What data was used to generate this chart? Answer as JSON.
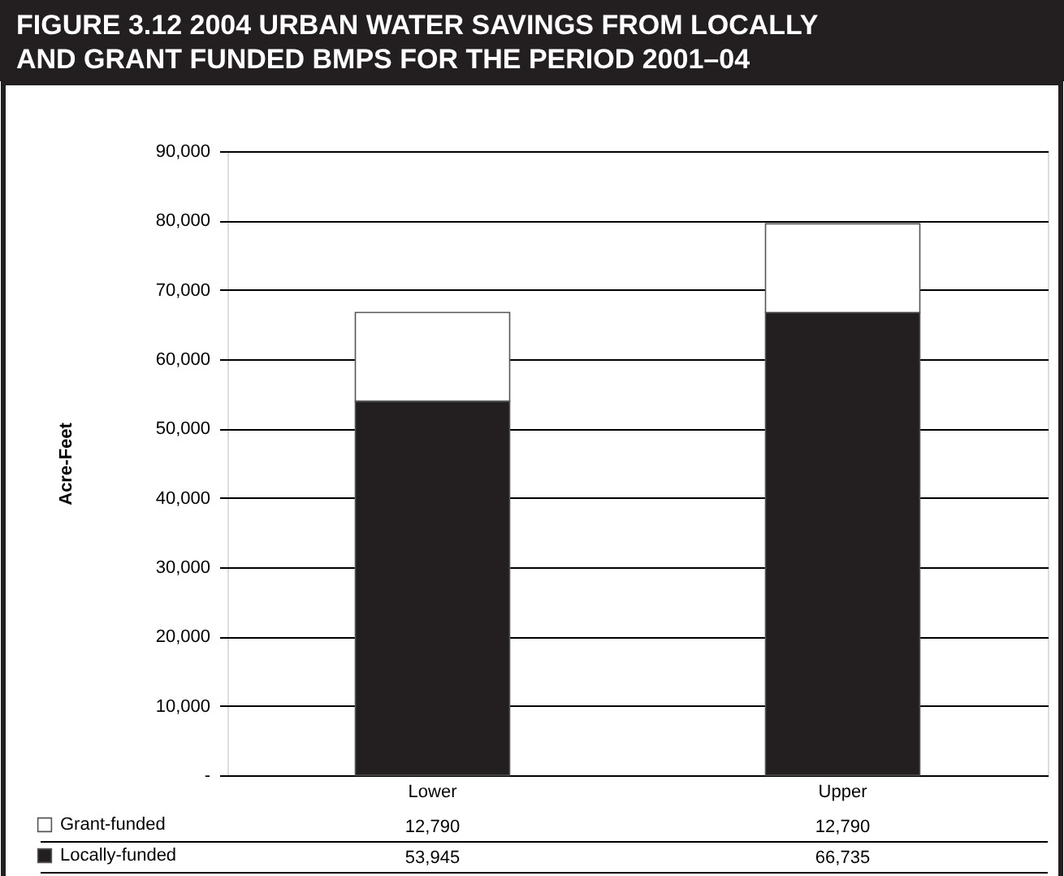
{
  "chart_data": {
    "type": "bar",
    "title": "FIGURE 3.12 2004 URBAN WATER SAVINGS FROM LOCALLY\nAND GRANT FUNDED BMPS FOR THE PERIOD 2001–04",
    "ylabel": "Acre-Feet",
    "categories": [
      "Lower",
      "Upper"
    ],
    "stacked": true,
    "series": [
      {
        "name": "Locally-funded",
        "color": "#231f20",
        "values": [
          53945,
          66735
        ],
        "value_labels": [
          "53,945",
          "66,735"
        ]
      },
      {
        "name": "Grant-funded",
        "color": "#ffffff",
        "values": [
          12790,
          12790
        ],
        "value_labels": [
          "12,790",
          "12,790"
        ]
      }
    ],
    "ylim": [
      0,
      90000
    ],
    "yticks": [
      {
        "value": 0,
        "label": "-"
      },
      {
        "value": 10000,
        "label": "10,000"
      },
      {
        "value": 20000,
        "label": "20,000"
      },
      {
        "value": 30000,
        "label": "30,000"
      },
      {
        "value": 40000,
        "label": "40,000"
      },
      {
        "value": 50000,
        "label": "50,000"
      },
      {
        "value": 60000,
        "label": "60,000"
      },
      {
        "value": 70000,
        "label": "70,000"
      },
      {
        "value": 80000,
        "label": "80,000"
      },
      {
        "value": 90000,
        "label": "90,000"
      }
    ],
    "grid": "y",
    "legend": "bottom"
  }
}
